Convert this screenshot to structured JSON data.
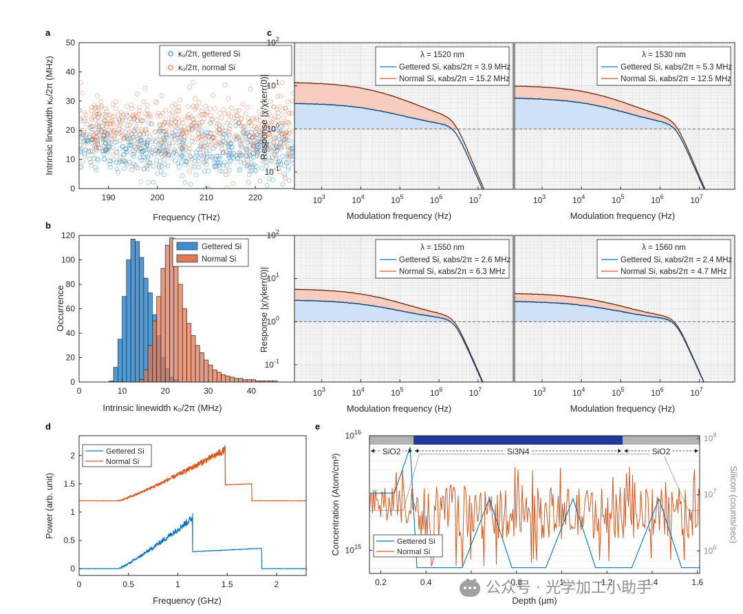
{
  "figure": {
    "description_free": true
  },
  "colors": {
    "blue": "#0072bd",
    "orange": "#d95319",
    "blue_fill": "#cfe2f5",
    "orange_fill": "#f6cdbf",
    "navy": "#1f3a9b",
    "gray_band": "#b3b3b3",
    "gray_line": "#a8a8a8",
    "dark": "#3a2a1a"
  },
  "watermark": "公众号 · 光学加工小助手",
  "chart_data": [
    {
      "panel": "a",
      "type": "scatter",
      "xlabel": "Frequency (THz)",
      "ylabel": "Intrinsic linewidth κ₀/2π (MHz)",
      "xlim": [
        184,
        228
      ],
      "ylim": [
        0,
        50
      ],
      "xticks": [
        190,
        200,
        210,
        220
      ],
      "yticks": [
        0,
        10,
        20,
        30,
        40,
        50
      ],
      "legend": [
        "κ₀/2π, gettered Si",
        "κ₀/2π, normal Si"
      ],
      "series": [
        {
          "name": "gettered",
          "mean": 13,
          "spread": 4.5,
          "count": 560
        },
        {
          "name": "normal",
          "mean": 21,
          "spread": 5.5,
          "count": 560
        }
      ]
    },
    {
      "panel": "b",
      "type": "bar",
      "xlabel": "Intrinsic linewidth κ₀/2π (MHz)",
      "ylabel": "Occurrence",
      "xlim": [
        0,
        50
      ],
      "ylim": [
        0,
        120
      ],
      "xticks": [
        0,
        10,
        20,
        30,
        40
      ],
      "yticks": [
        0,
        20,
        40,
        60,
        80,
        100,
        120
      ],
      "legend": [
        "Gettered Si",
        "Normal Si"
      ],
      "bin_start": 7,
      "bin_width": 1,
      "series": [
        {
          "name": "Gettered Si",
          "start": 7,
          "values": [
            1,
            12,
            35,
            70,
            100,
            117,
            115,
            102,
            85,
            73,
            55,
            38,
            20,
            11,
            4,
            2
          ]
        },
        {
          "name": "Normal Si",
          "start": 14,
          "values": [
            2,
            10,
            30,
            50,
            70,
            93,
            112,
            118,
            100,
            80,
            60,
            48,
            38,
            30,
            24,
            18,
            14,
            10,
            8,
            6,
            5,
            4,
            3,
            3,
            2,
            2,
            2,
            1,
            1,
            1,
            1,
            1
          ]
        }
      ]
    },
    {
      "panel": "c",
      "type": "line",
      "wavelength": "λ = 1520 nm",
      "xlabel": "Modulation frequency (Hz)",
      "ylabel": "Response |χ/χkerr(0)|",
      "xlim_log10": [
        2.3,
        7.9
      ],
      "ylim_log10": [
        -1.4,
        2
      ],
      "xticks_log10": [
        3,
        4,
        5,
        6,
        7
      ],
      "yticks_log10": [
        -1,
        0,
        1,
        2
      ],
      "legend": [
        "Gettered Si, κabs/2π = 3.9 MHz",
        "Normal Si, κabs/2π = 15.2 MHz"
      ],
      "gettered_plateau": 4.0,
      "normal_plateau": 12.2,
      "cutoff_hz": 2500000.0
    },
    {
      "panel": "c2",
      "type": "line",
      "wavelength": "λ = 1530 nm",
      "xlabel": "Modulation frequency (Hz)",
      "xlim_log10": [
        2.3,
        7.9
      ],
      "ylim_log10": [
        -1.4,
        2
      ],
      "xticks_log10": [
        3,
        4,
        5,
        6,
        7
      ],
      "legend": [
        "Gettered Si, κabs/2π = 5.3 MHz",
        "Normal Si, κabs/2π = 12.5 MHz"
      ],
      "gettered_plateau": 5.3,
      "normal_plateau": 10.2,
      "cutoff_hz": 2500000.0
    },
    {
      "panel": "c3",
      "type": "line",
      "wavelength": "λ = 1550 nm",
      "xlabel": "Modulation frequency (Hz)",
      "ylabel": "Response |χ/χkerr(0)|",
      "xlim_log10": [
        2.3,
        7.9
      ],
      "ylim_log10": [
        -1.4,
        2
      ],
      "xticks_log10": [
        3,
        4,
        5,
        6,
        7
      ],
      "yticks_log10": [
        -1,
        0,
        1,
        2
      ],
      "legend": [
        "Gettered Si, κabs/2π = 2.6 MHz",
        "Normal Si, κabs/2π = 6.3 MHz"
      ],
      "gettered_plateau": 3.2,
      "normal_plateau": 5.8,
      "cutoff_hz": 2500000.0
    },
    {
      "panel": "c4",
      "type": "line",
      "wavelength": "λ = 1560 nm",
      "xlabel": "Modulation frequency (Hz)",
      "xlim_log10": [
        2.3,
        7.9
      ],
      "ylim_log10": [
        -1.4,
        2
      ],
      "xticks_log10": [
        3,
        4,
        5,
        6,
        7
      ],
      "legend": [
        "Gettered Si, κabs/2π = 2.4 MHz",
        "Normal Si, κabs/2π = 4.7 MHz"
      ],
      "gettered_plateau": 3.0,
      "normal_plateau": 4.6,
      "cutoff_hz": 2500000.0
    },
    {
      "panel": "d",
      "type": "line",
      "xlabel": "Frequency (GHz)",
      "ylabel": "Power (arb. unit)",
      "xlim": [
        0,
        2.3
      ],
      "ylim": [
        -0.12,
        2.35
      ],
      "xticks": [
        0,
        0.5,
        1,
        1.5,
        2
      ],
      "yticks": [
        0,
        0.5,
        1,
        1.5,
        2
      ],
      "legend": [
        "Gettered Si",
        "Normal Si"
      ],
      "series": [
        {
          "name": "Gettered Si",
          "base": 0,
          "ramp_start": 0.4,
          "drop": 1.15,
          "peak": 0.98,
          "shelf": 0.3,
          "shelf_end": 0.36,
          "end": 1.85
        },
        {
          "name": "Normal Si",
          "base": 1.2,
          "ramp_start": 0.4,
          "drop": 1.48,
          "peak": 2.18,
          "shelf": 1.48,
          "shelf_end": 1.5,
          "end": 1.75
        }
      ]
    },
    {
      "panel": "e",
      "type": "line",
      "xlabel": "Depth (μm)",
      "ylabel": "Concentration (Atom/cm³)",
      "ylabel_right": "Silicon (counts/sec)",
      "xlim": [
        0.15,
        1.61
      ],
      "ylim_log10": [
        14.8,
        16
      ],
      "xticks": [
        0.2,
        0.4,
        0.6,
        0.8,
        1,
        1.2,
        1.4,
        1.6
      ],
      "yticks_log10": [
        15,
        16
      ],
      "yticks_right_log10": [
        6,
        7,
        8
      ],
      "layers": [
        {
          "label": "SiO2",
          "from": 0.15,
          "to": 0.345
        },
        {
          "label": "Si3N4",
          "from": 0.345,
          "to": 1.27
        },
        {
          "label": "SiO2",
          "from": 1.27,
          "to": 1.61
        }
      ],
      "legend": [
        "Gettered Si",
        "Normal Si"
      ],
      "gettered_peaks_um": [
        0.33,
        0.68,
        1.05,
        1.43
      ],
      "normal_band_log10": [
        15.1,
        15.55
      ]
    }
  ],
  "labels": {
    "panel_a": "a",
    "panel_b": "b",
    "panel_c": "c",
    "panel_d": "d",
    "panel_e": "e"
  }
}
